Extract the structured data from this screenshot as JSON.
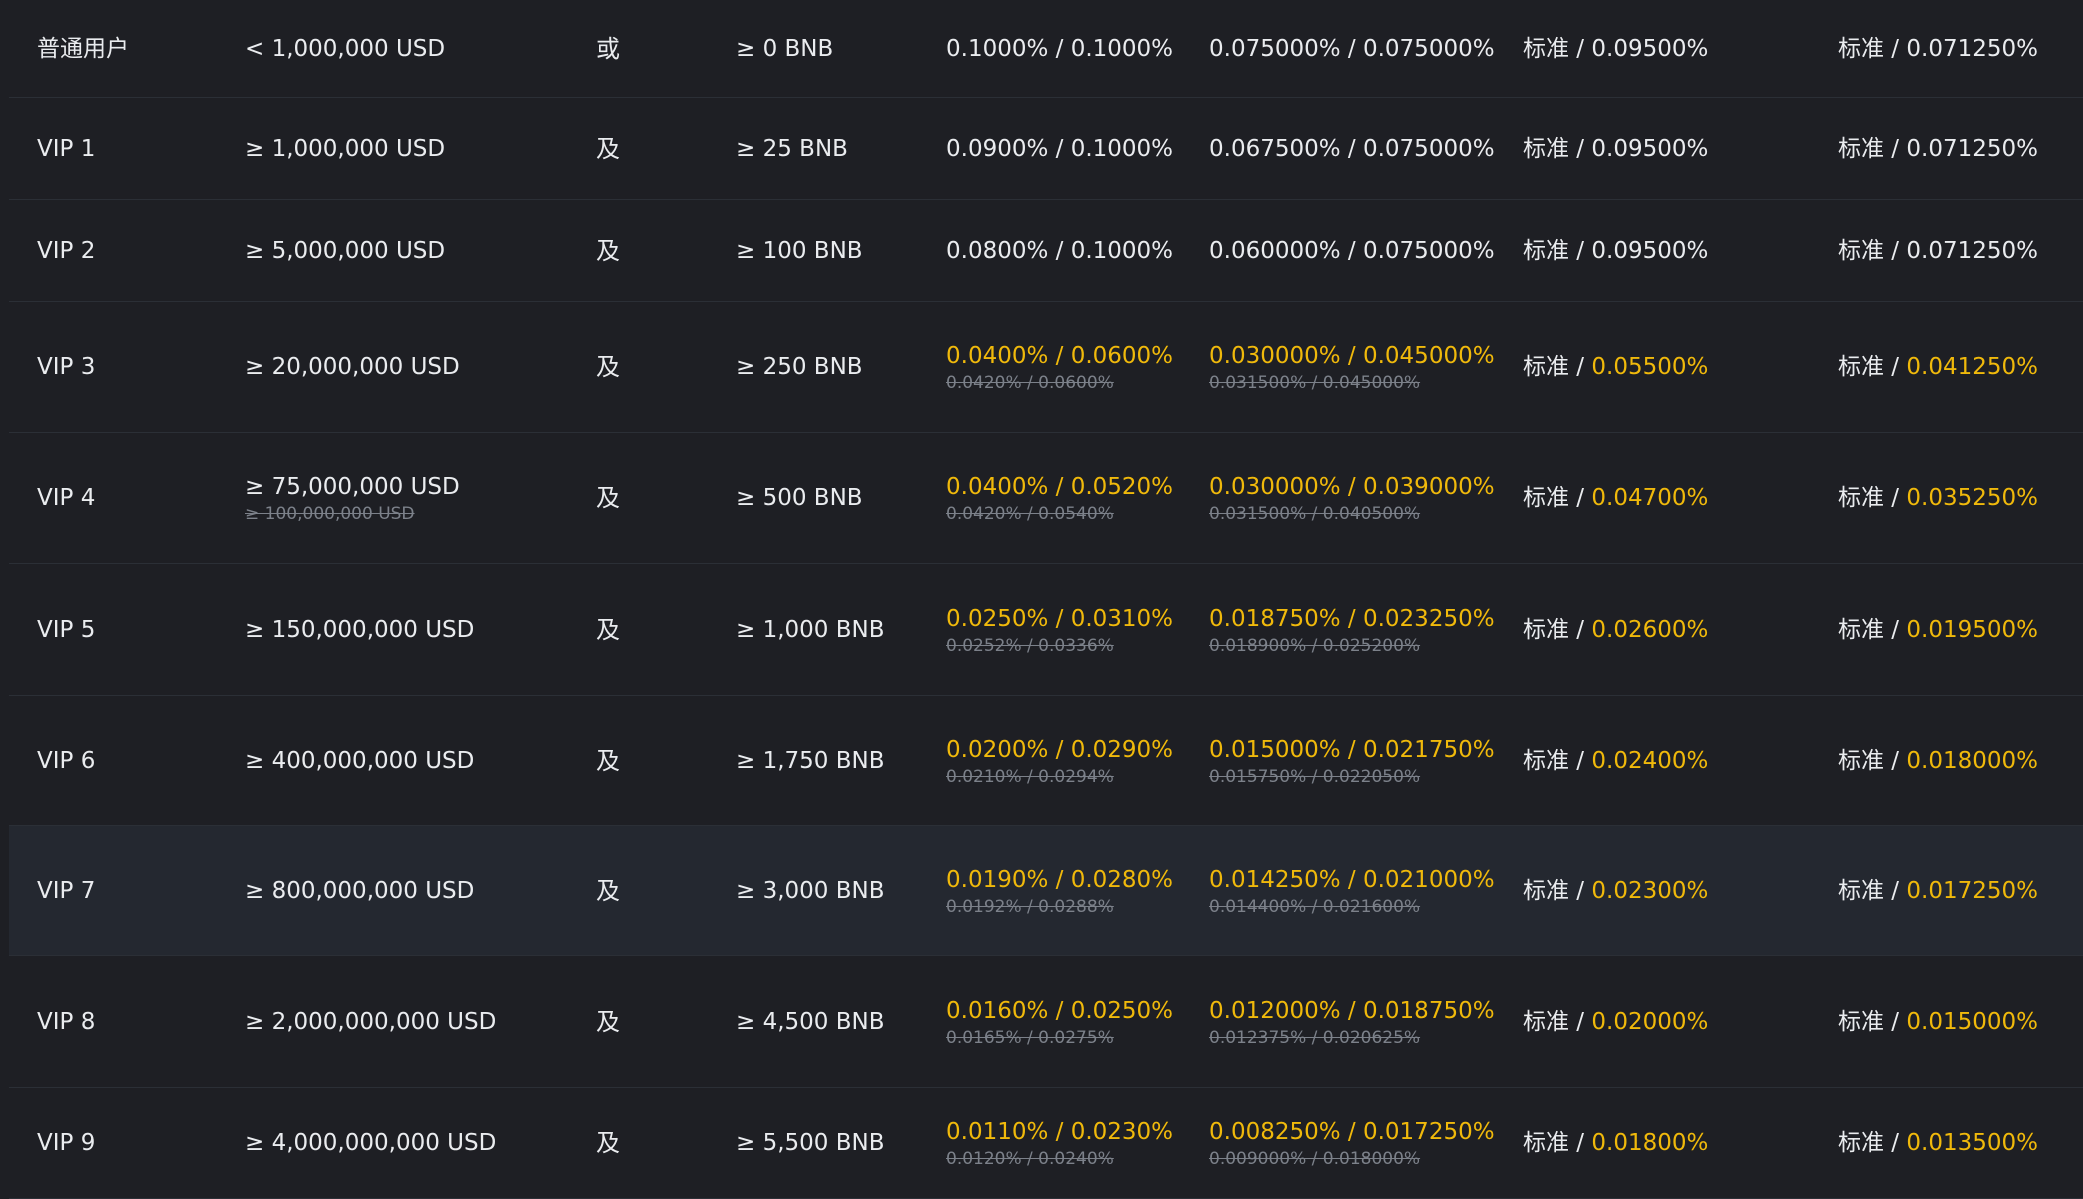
{
  "rows": [
    {
      "level": "普通用户",
      "volume": "< 1,000,000 USD",
      "volume_old": "",
      "connector": "或",
      "bnb": "≥ 0 BNB",
      "spot": "0.1000% / 0.1000%",
      "spot_old": "",
      "spot_bnb": "0.075000% / 0.075000%",
      "spot_bnb_old": "",
      "fut_prefix": "标准 /",
      "fut": "0.09500%",
      "futbnb_prefix": "标准 /",
      "futbnb": "0.071250%",
      "discount": false,
      "highlighted": false
    },
    {
      "level": "VIP 1",
      "volume": "≥ 1,000,000 USD",
      "volume_old": "",
      "connector": "及",
      "bnb": "≥ 25 BNB",
      "spot": "0.0900% / 0.1000%",
      "spot_old": "",
      "spot_bnb": "0.067500% / 0.075000%",
      "spot_bnb_old": "",
      "fut_prefix": "标准 /",
      "fut": "0.09500%",
      "futbnb_prefix": "标准 /",
      "futbnb": "0.071250%",
      "discount": false,
      "highlighted": false
    },
    {
      "level": "VIP 2",
      "volume": "≥ 5,000,000 USD",
      "volume_old": "",
      "connector": "及",
      "bnb": "≥ 100 BNB",
      "spot": "0.0800% / 0.1000%",
      "spot_old": "",
      "spot_bnb": "0.060000% / 0.075000%",
      "spot_bnb_old": "",
      "fut_prefix": "标准 /",
      "fut": "0.09500%",
      "futbnb_prefix": "标准 /",
      "futbnb": "0.071250%",
      "discount": false,
      "highlighted": false
    },
    {
      "level": "VIP 3",
      "volume": "≥ 20,000,000 USD",
      "volume_old": "",
      "connector": "及",
      "bnb": "≥ 250 BNB",
      "spot": "0.0400% / 0.0600%",
      "spot_old": "0.0420% / 0.0600%",
      "spot_bnb": "0.030000% / 0.045000%",
      "spot_bnb_old": "0.031500% / 0.045000%",
      "fut_prefix": "标准 /",
      "fut": "0.05500%",
      "futbnb_prefix": "标准 /",
      "futbnb": "0.041250%",
      "discount": true,
      "highlighted": false
    },
    {
      "level": "VIP 4",
      "volume": "≥ 75,000,000 USD",
      "volume_old": "≥ 100,000,000 USD",
      "connector": "及",
      "bnb": "≥ 500 BNB",
      "spot": "0.0400% / 0.0520%",
      "spot_old": "0.0420% / 0.0540%",
      "spot_bnb": "0.030000% / 0.039000%",
      "spot_bnb_old": "0.031500% / 0.040500%",
      "fut_prefix": "标准 /",
      "fut": "0.04700%",
      "futbnb_prefix": "标准 /",
      "futbnb": "0.035250%",
      "discount": true,
      "highlighted": false
    },
    {
      "level": "VIP 5",
      "volume": "≥ 150,000,000 USD",
      "volume_old": "",
      "connector": "及",
      "bnb": "≥ 1,000 BNB",
      "spot": "0.0250% / 0.0310%",
      "spot_old": "0.0252% / 0.0336%",
      "spot_bnb": "0.018750% / 0.023250%",
      "spot_bnb_old": "0.018900% / 0.025200%",
      "fut_prefix": "标准 /",
      "fut": "0.02600%",
      "futbnb_prefix": "标准 /",
      "futbnb": "0.019500%",
      "discount": true,
      "highlighted": false
    },
    {
      "level": "VIP 6",
      "volume": "≥ 400,000,000 USD",
      "volume_old": "",
      "connector": "及",
      "bnb": "≥ 1,750 BNB",
      "spot": "0.0200% / 0.0290%",
      "spot_old": "0.0210% / 0.0294%",
      "spot_bnb": "0.015000% / 0.021750%",
      "spot_bnb_old": "0.015750% / 0.022050%",
      "fut_prefix": "标准 /",
      "fut": "0.02400%",
      "futbnb_prefix": "标准 /",
      "futbnb": "0.018000%",
      "discount": true,
      "highlighted": false
    },
    {
      "level": "VIP 7",
      "volume": "≥ 800,000,000 USD",
      "volume_old": "",
      "connector": "及",
      "bnb": "≥ 3,000 BNB",
      "spot": "0.0190% / 0.0280%",
      "spot_old": "0.0192% / 0.0288%",
      "spot_bnb": "0.014250% / 0.021000%",
      "spot_bnb_old": "0.014400% / 0.021600%",
      "fut_prefix": "标准 /",
      "fut": "0.02300%",
      "futbnb_prefix": "标准 /",
      "futbnb": "0.017250%",
      "discount": true,
      "highlighted": true
    },
    {
      "level": "VIP 8",
      "volume": "≥ 2,000,000,000 USD",
      "volume_old": "",
      "connector": "及",
      "bnb": "≥ 4,500 BNB",
      "spot": "0.0160% / 0.0250%",
      "spot_old": "0.0165% / 0.0275%",
      "spot_bnb": "0.012000% / 0.018750%",
      "spot_bnb_old": "0.012375% / 0.020625%",
      "fut_prefix": "标准 /",
      "fut": "0.02000%",
      "futbnb_prefix": "标准 /",
      "futbnb": "0.015000%",
      "discount": true,
      "highlighted": false
    },
    {
      "level": "VIP 9",
      "volume": "≥ 4,000,000,000 USD",
      "volume_old": "",
      "connector": "及",
      "bnb": "≥ 5,500 BNB",
      "spot": "0.0110% / 0.0230%",
      "spot_old": "0.0120% / 0.0240%",
      "spot_bnb": "0.008250% / 0.017250%",
      "spot_bnb_old": "0.009000% / 0.018000%",
      "fut_prefix": "标准 /",
      "fut": "0.01800%",
      "futbnb_prefix": "标准 /",
      "futbnb": "0.013500%",
      "discount": true,
      "highlighted": false
    }
  ],
  "colors": {
    "background": "#1e1f24",
    "text": "#eaecef",
    "accent": "#f0b90b",
    "muted": "#7c818a",
    "row_hover": "#242830"
  }
}
